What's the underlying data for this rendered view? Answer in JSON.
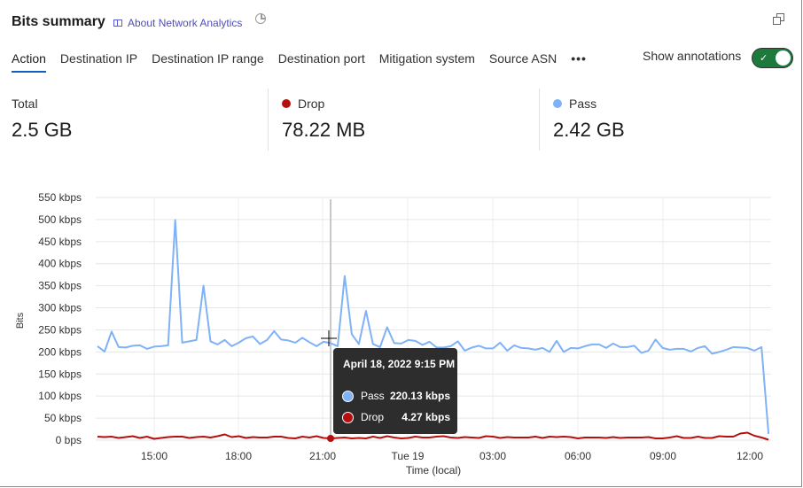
{
  "header": {
    "title": "Bits summary",
    "about_link": "About Network Analytics"
  },
  "tabs": [
    {
      "label": "Action",
      "active": true
    },
    {
      "label": "Destination IP"
    },
    {
      "label": "Destination IP range"
    },
    {
      "label": "Destination port"
    },
    {
      "label": "Mitigation system"
    },
    {
      "label": "Source ASN"
    },
    {
      "label": "•••"
    }
  ],
  "annotations": {
    "label": "Show annotations",
    "enabled": true
  },
  "summary": [
    {
      "label": "Total",
      "value": "2.5 GB"
    },
    {
      "label": "Drop",
      "value": "78.22 MB",
      "color": "#b50f0f"
    },
    {
      "label": "Pass",
      "value": "2.42 GB",
      "color": "#7fb2f7"
    }
  ],
  "tooltip": {
    "date": "April 18, 2022 9:15 PM",
    "rows": [
      {
        "label": "Pass",
        "value": "220.13 kbps",
        "color": "#7fb2f7"
      },
      {
        "label": "Drop",
        "value": "4.27 kbps",
        "color": "#b50f0f"
      }
    ]
  },
  "chart_data": {
    "type": "line",
    "xlabel": "Time (local)",
    "ylabel": "Bits",
    "ylim": [
      0,
      550
    ],
    "yticks": [
      "0 bps",
      "50 kbps",
      "100 kbps",
      "150 kbps",
      "200 kbps",
      "250 kbps",
      "300 kbps",
      "350 kbps",
      "400 kbps",
      "450 kbps",
      "500 kbps",
      "550 kbps"
    ],
    "xticks": [
      "15:00",
      "18:00",
      "21:00",
      "Tue 19",
      "03:00",
      "06:00",
      "09:00",
      "12:00"
    ],
    "x_start": "2022-04-18 13:00",
    "x_interval_minutes": 15,
    "grid": true,
    "hover_time": "2022-04-18 21:15",
    "series": [
      {
        "name": "Pass",
        "color": "#7fb2f7",
        "values": [
          213,
          201,
          246,
          211,
          210,
          214,
          215,
          207,
          212,
          213,
          215,
          499,
          221,
          224,
          227,
          350,
          224,
          217,
          227,
          213,
          221,
          231,
          235,
          218,
          227,
          247,
          228,
          226,
          221,
          232,
          222,
          213,
          223,
          220,
          213,
          372,
          240,
          218,
          293,
          218,
          211,
          256,
          220,
          219,
          227,
          225,
          216,
          223,
          210,
          210,
          213,
          224,
          203,
          210,
          214,
          208,
          208,
          221,
          203,
          215,
          209,
          208,
          205,
          209,
          200,
          225,
          200,
          209,
          208,
          213,
          217,
          217,
          209,
          219,
          211,
          211,
          214,
          198,
          203,
          228,
          209,
          205,
          207,
          207,
          201,
          209,
          213,
          196,
          200,
          205,
          211,
          210,
          209,
          203,
          211,
          14
        ]
      },
      {
        "name": "Drop",
        "color": "#b50f0f",
        "values": [
          8,
          7,
          8,
          5,
          7,
          9,
          5,
          8,
          3,
          5,
          7,
          8,
          8,
          5,
          7,
          8,
          6,
          9,
          13,
          7,
          9,
          5,
          7,
          6,
          6,
          8,
          8,
          5,
          4,
          8,
          6,
          9,
          5,
          4,
          5,
          6,
          4,
          5,
          4,
          8,
          5,
          9,
          6,
          4,
          5,
          8,
          6,
          6,
          8,
          9,
          6,
          5,
          7,
          6,
          5,
          9,
          8,
          5,
          7,
          6,
          6,
          6,
          8,
          5,
          8,
          7,
          8,
          7,
          4,
          6,
          6,
          6,
          5,
          7,
          5,
          6,
          6,
          6,
          7,
          4,
          4,
          6,
          9,
          5,
          5,
          8,
          5,
          5,
          9,
          8,
          8,
          15,
          17,
          10,
          6,
          1
        ]
      }
    ]
  }
}
